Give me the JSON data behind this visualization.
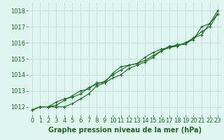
{
  "xlabel": "Graphe pression niveau de la mer (hPa)",
  "x_values": [
    0,
    1,
    2,
    3,
    4,
    5,
    6,
    7,
    8,
    9,
    10,
    11,
    12,
    13,
    14,
    15,
    16,
    17,
    18,
    19,
    20,
    21,
    22,
    23
  ],
  "series": [
    [
      1011.8,
      1012.0,
      1012.0,
      1012.0,
      1012.0,
      1012.2,
      1012.5,
      1012.8,
      1013.3,
      1013.5,
      1013.8,
      1014.0,
      1014.4,
      1014.6,
      1014.8,
      1015.1,
      1015.5,
      1015.7,
      1015.8,
      1016.0,
      1016.2,
      1017.0,
      1017.2,
      1018.0
    ],
    [
      1011.8,
      1012.0,
      1012.0,
      1012.1,
      1012.4,
      1012.7,
      1013.0,
      1013.1,
      1013.5,
      1013.5,
      1014.1,
      1014.5,
      1014.6,
      1014.7,
      1015.1,
      1015.4,
      1015.6,
      1015.7,
      1015.9,
      1015.9,
      1016.3,
      1016.5,
      1017.2,
      1017.8
    ],
    [
      1011.8,
      1012.0,
      1012.0,
      1012.3,
      1012.5,
      1012.6,
      1012.8,
      1013.2,
      1013.4,
      1013.6,
      1014.0,
      1014.3,
      1014.6,
      1014.7,
      1014.9,
      1015.2,
      1015.5,
      1015.8,
      1015.8,
      1016.0,
      1016.3,
      1016.7,
      1017.0,
      1017.8
    ]
  ],
  "line_color": "#1a6b1a",
  "marker": "+",
  "markersize": 3,
  "linewidth": 0.8,
  "background_color": "#dff5f0",
  "grid_color": "#b8d8d0",
  "ylim": [
    1011.5,
    1018.5
  ],
  "yticks": [
    1012,
    1013,
    1014,
    1015,
    1016,
    1017,
    1018
  ],
  "xticks": [
    0,
    1,
    2,
    3,
    4,
    5,
    6,
    7,
    8,
    9,
    10,
    11,
    12,
    13,
    14,
    15,
    16,
    17,
    18,
    19,
    20,
    21,
    22,
    23
  ],
  "xlabel_color": "#1a6b1a",
  "xlabel_fontsize": 7,
  "tick_fontsize": 6,
  "tick_color": "#1a6b1a"
}
